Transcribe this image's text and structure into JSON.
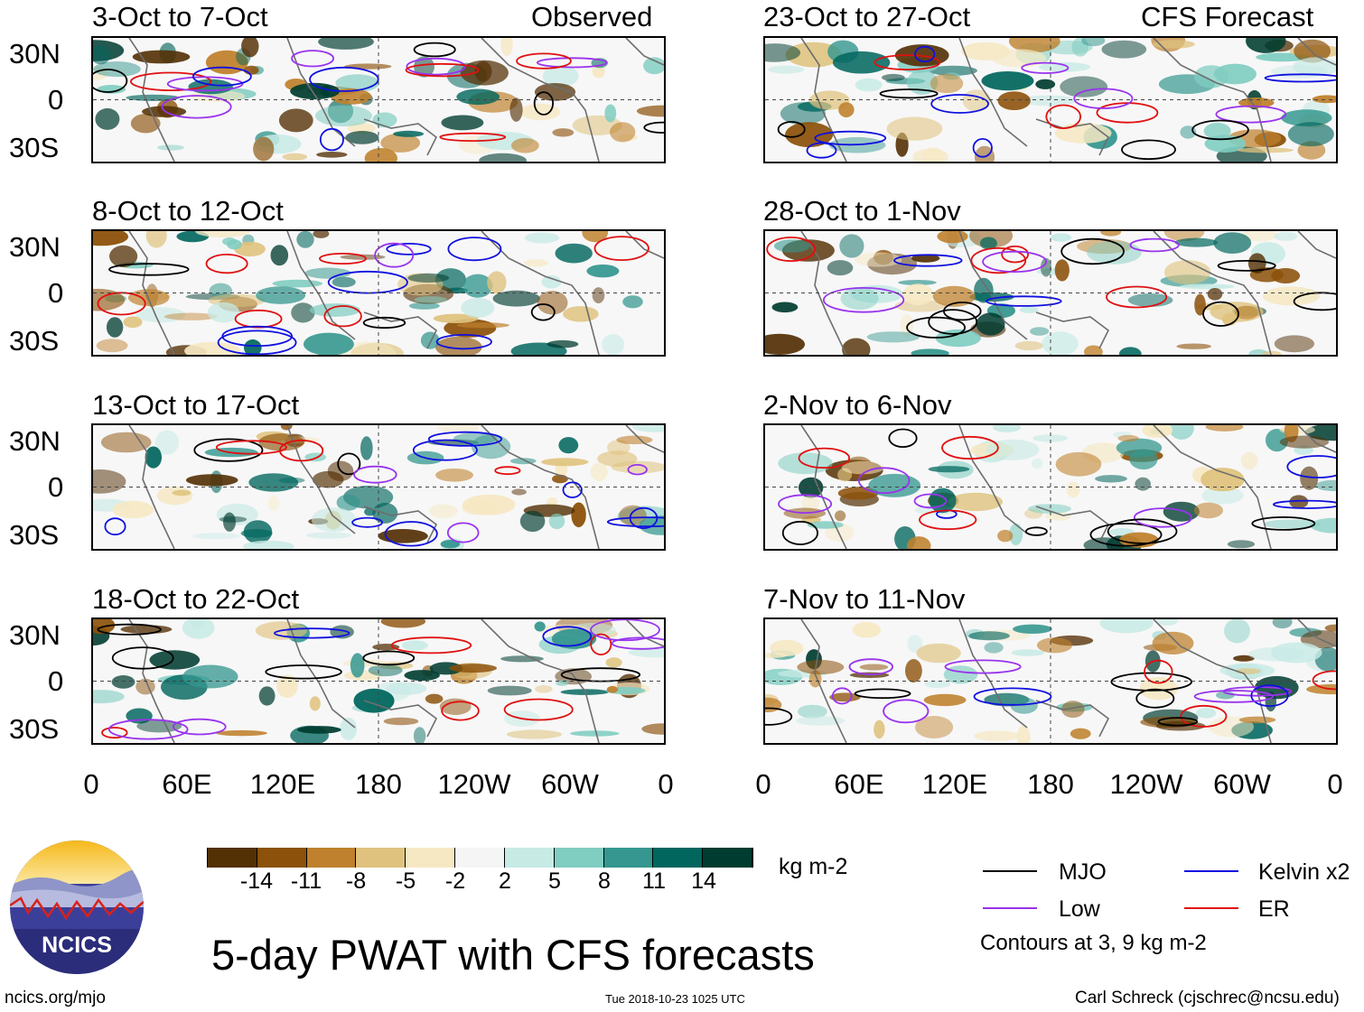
{
  "panels_left_header": "Observed",
  "panels_right_header": "CFS Forecast",
  "panels": [
    {
      "title": "3-Oct to 7-Oct",
      "col": 0,
      "row": 0
    },
    {
      "title": "8-Oct to 12-Oct",
      "col": 0,
      "row": 1
    },
    {
      "title": "13-Oct to 17-Oct",
      "col": 0,
      "row": 2
    },
    {
      "title": "18-Oct to 22-Oct",
      "col": 0,
      "row": 3
    },
    {
      "title": "23-Oct to 27-Oct",
      "col": 1,
      "row": 0
    },
    {
      "title": "28-Oct to 1-Nov",
      "col": 1,
      "row": 1
    },
    {
      "title": "2-Nov to 6-Nov",
      "col": 1,
      "row": 2
    },
    {
      "title": "7-Nov to 11-Nov",
      "col": 1,
      "row": 3
    }
  ],
  "lat_labels": [
    "30N",
    "0",
    "30S"
  ],
  "lon_labels": [
    "0",
    "60E",
    "120E",
    "180",
    "120W",
    "60W",
    "0"
  ],
  "colorbar": {
    "colors": [
      "#543005",
      "#8c510a",
      "#bf812d",
      "#dfc27d",
      "#f6e8c3",
      "#f5f5f5",
      "#c7eae5",
      "#80cdc1",
      "#35978f",
      "#01665e",
      "#003c30"
    ],
    "ticks": [
      "-14",
      "-11",
      "-8",
      "-5",
      "-2",
      "2",
      "5",
      "8",
      "11",
      "14"
    ],
    "units": "kg m-2"
  },
  "legend": {
    "items": [
      {
        "label": "MJO",
        "color": "#000000"
      },
      {
        "label": "Kelvin x2",
        "color": "#1010e0"
      },
      {
        "label": "Low",
        "color": "#9933ee"
      },
      {
        "label": "ER",
        "color": "#e01010"
      }
    ],
    "note": "Contours at 3, 9 kg m-2"
  },
  "title": "5-day PWAT with CFS forecasts",
  "logo_text": "NCICS",
  "footer": {
    "left": "ncics.org/mjo",
    "center": "Tue 2018-10-23 1025 UTC",
    "right": "Carl Schreck (cjschrec@ncsu.edu)"
  }
}
